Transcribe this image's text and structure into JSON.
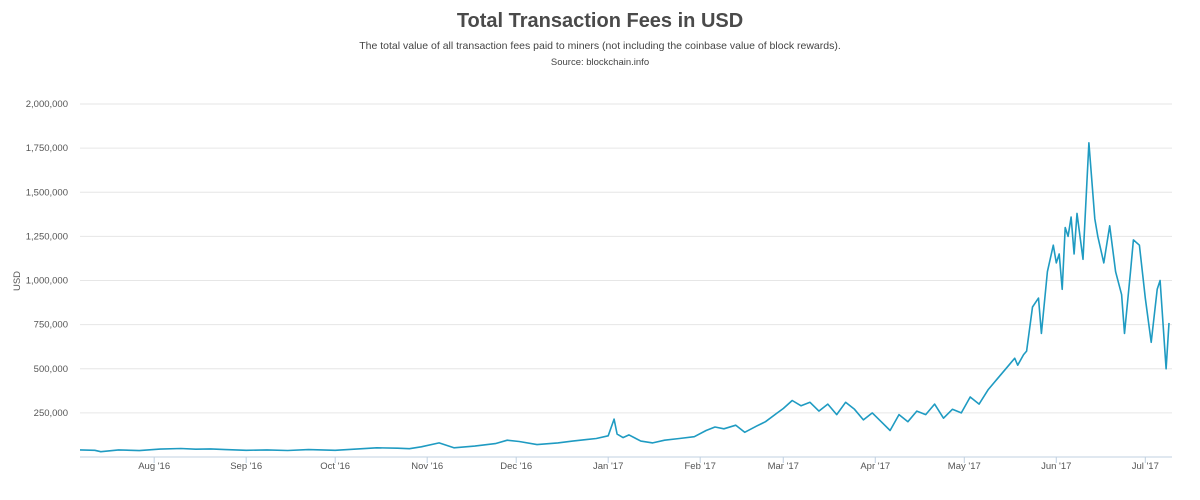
{
  "chart_data": {
    "type": "line",
    "title": "Total Transaction Fees in USD",
    "subtitle": "The total value of all transaction fees paid to miners (not including the coinbase value of block rewards).",
    "source": "Source: blockchain.info",
    "ylabel": "USD",
    "xlabel": "",
    "ylim": [
      0,
      2000000
    ],
    "xlim": [
      "2016-07-07",
      "2017-07-10"
    ],
    "yticks": [
      {
        "value": 250000,
        "label": "250,000"
      },
      {
        "value": 500000,
        "label": "500,000"
      },
      {
        "value": 750000,
        "label": "750,000"
      },
      {
        "value": 1000000,
        "label": "1,000,000"
      },
      {
        "value": 1250000,
        "label": "1,250,000"
      },
      {
        "value": 1500000,
        "label": "1,500,000"
      },
      {
        "value": 1750000,
        "label": "1,750,000"
      },
      {
        "value": 2000000,
        "label": "2,000,000"
      }
    ],
    "xticks": [
      {
        "date": "2016-08-01",
        "label": "Aug '16"
      },
      {
        "date": "2016-09-01",
        "label": "Sep '16"
      },
      {
        "date": "2016-10-01",
        "label": "Oct '16"
      },
      {
        "date": "2016-11-01",
        "label": "Nov '16"
      },
      {
        "date": "2016-12-01",
        "label": "Dec '16"
      },
      {
        "date": "2017-01-01",
        "label": "Jan '17"
      },
      {
        "date": "2017-02-01",
        "label": "Feb '17"
      },
      {
        "date": "2017-03-01",
        "label": "Mar '17"
      },
      {
        "date": "2017-04-01",
        "label": "Apr '17"
      },
      {
        "date": "2017-05-01",
        "label": "May '17"
      },
      {
        "date": "2017-06-01",
        "label": "Jun '17"
      },
      {
        "date": "2017-07-01",
        "label": "Jul '17"
      }
    ],
    "grid": true,
    "legend": "none",
    "color": "#1f9bc2",
    "series": [
      {
        "x": [
          "2016-07-07",
          "2016-07-12",
          "2016-07-14",
          "2016-07-20",
          "2016-07-27",
          "2016-08-03",
          "2016-08-10",
          "2016-08-15",
          "2016-08-20",
          "2016-08-25",
          "2016-09-01",
          "2016-09-08",
          "2016-09-15",
          "2016-09-22",
          "2016-10-01",
          "2016-10-08",
          "2016-10-15",
          "2016-10-22",
          "2016-10-26",
          "2016-10-30",
          "2016-11-05",
          "2016-11-10",
          "2016-11-17",
          "2016-11-24",
          "2016-11-28",
          "2016-12-02",
          "2016-12-08",
          "2016-12-15",
          "2016-12-20",
          "2016-12-25",
          "2016-12-28",
          "2017-01-01",
          "2017-01-03",
          "2017-01-04",
          "2017-01-06",
          "2017-01-08",
          "2017-01-12",
          "2017-01-16",
          "2017-01-20",
          "2017-01-25",
          "2017-01-30",
          "2017-02-03",
          "2017-02-06",
          "2017-02-09",
          "2017-02-13",
          "2017-02-16",
          "2017-02-20",
          "2017-02-23",
          "2017-02-27",
          "2017-03-01",
          "2017-03-04",
          "2017-03-07",
          "2017-03-10",
          "2017-03-13",
          "2017-03-16",
          "2017-03-19",
          "2017-03-22",
          "2017-03-25",
          "2017-03-28",
          "2017-03-31",
          "2017-04-03",
          "2017-04-06",
          "2017-04-09",
          "2017-04-12",
          "2017-04-15",
          "2017-04-18",
          "2017-04-21",
          "2017-04-24",
          "2017-04-27",
          "2017-04-30",
          "2017-05-03",
          "2017-05-06",
          "2017-05-09",
          "2017-05-12",
          "2017-05-15",
          "2017-05-17",
          "2017-05-18",
          "2017-05-19",
          "2017-05-21",
          "2017-05-22",
          "2017-05-24",
          "2017-05-26",
          "2017-05-27",
          "2017-05-29",
          "2017-05-31",
          "2017-06-01",
          "2017-06-02",
          "2017-06-03",
          "2017-06-04",
          "2017-06-05",
          "2017-06-06",
          "2017-06-07",
          "2017-06-08",
          "2017-06-10",
          "2017-06-12",
          "2017-06-14",
          "2017-06-15",
          "2017-06-17",
          "2017-06-19",
          "2017-06-21",
          "2017-06-23",
          "2017-06-24",
          "2017-06-26",
          "2017-06-27",
          "2017-06-29",
          "2017-07-01",
          "2017-07-03",
          "2017-07-05",
          "2017-07-06",
          "2017-07-08",
          "2017-07-09"
        ],
        "y": [
          40000,
          38000,
          30000,
          40000,
          36000,
          45000,
          48000,
          44000,
          46000,
          42000,
          38000,
          40000,
          37000,
          42000,
          38000,
          45000,
          52000,
          50000,
          47000,
          58000,
          80000,
          52000,
          62000,
          76000,
          95000,
          88000,
          70000,
          80000,
          90000,
          100000,
          105000,
          120000,
          215000,
          130000,
          110000,
          125000,
          90000,
          80000,
          95000,
          105000,
          115000,
          150000,
          170000,
          160000,
          180000,
          140000,
          175000,
          200000,
          250000,
          275000,
          320000,
          290000,
          310000,
          260000,
          300000,
          240000,
          310000,
          270000,
          210000,
          250000,
          200000,
          150000,
          240000,
          200000,
          260000,
          240000,
          300000,
          220000,
          270000,
          250000,
          340000,
          300000,
          380000,
          440000,
          500000,
          540000,
          560000,
          520000,
          580000,
          600000,
          850000,
          900000,
          700000,
          1050000,
          1200000,
          1100000,
          1150000,
          950000,
          1300000,
          1250000,
          1360000,
          1150000,
          1380000,
          1120000,
          1780000,
          1350000,
          1250000,
          1100000,
          1310000,
          1050000,
          920000,
          700000,
          1050000,
          1230000,
          1200000,
          900000,
          650000,
          950000,
          1000000,
          500000,
          760000
        ]
      }
    ]
  }
}
